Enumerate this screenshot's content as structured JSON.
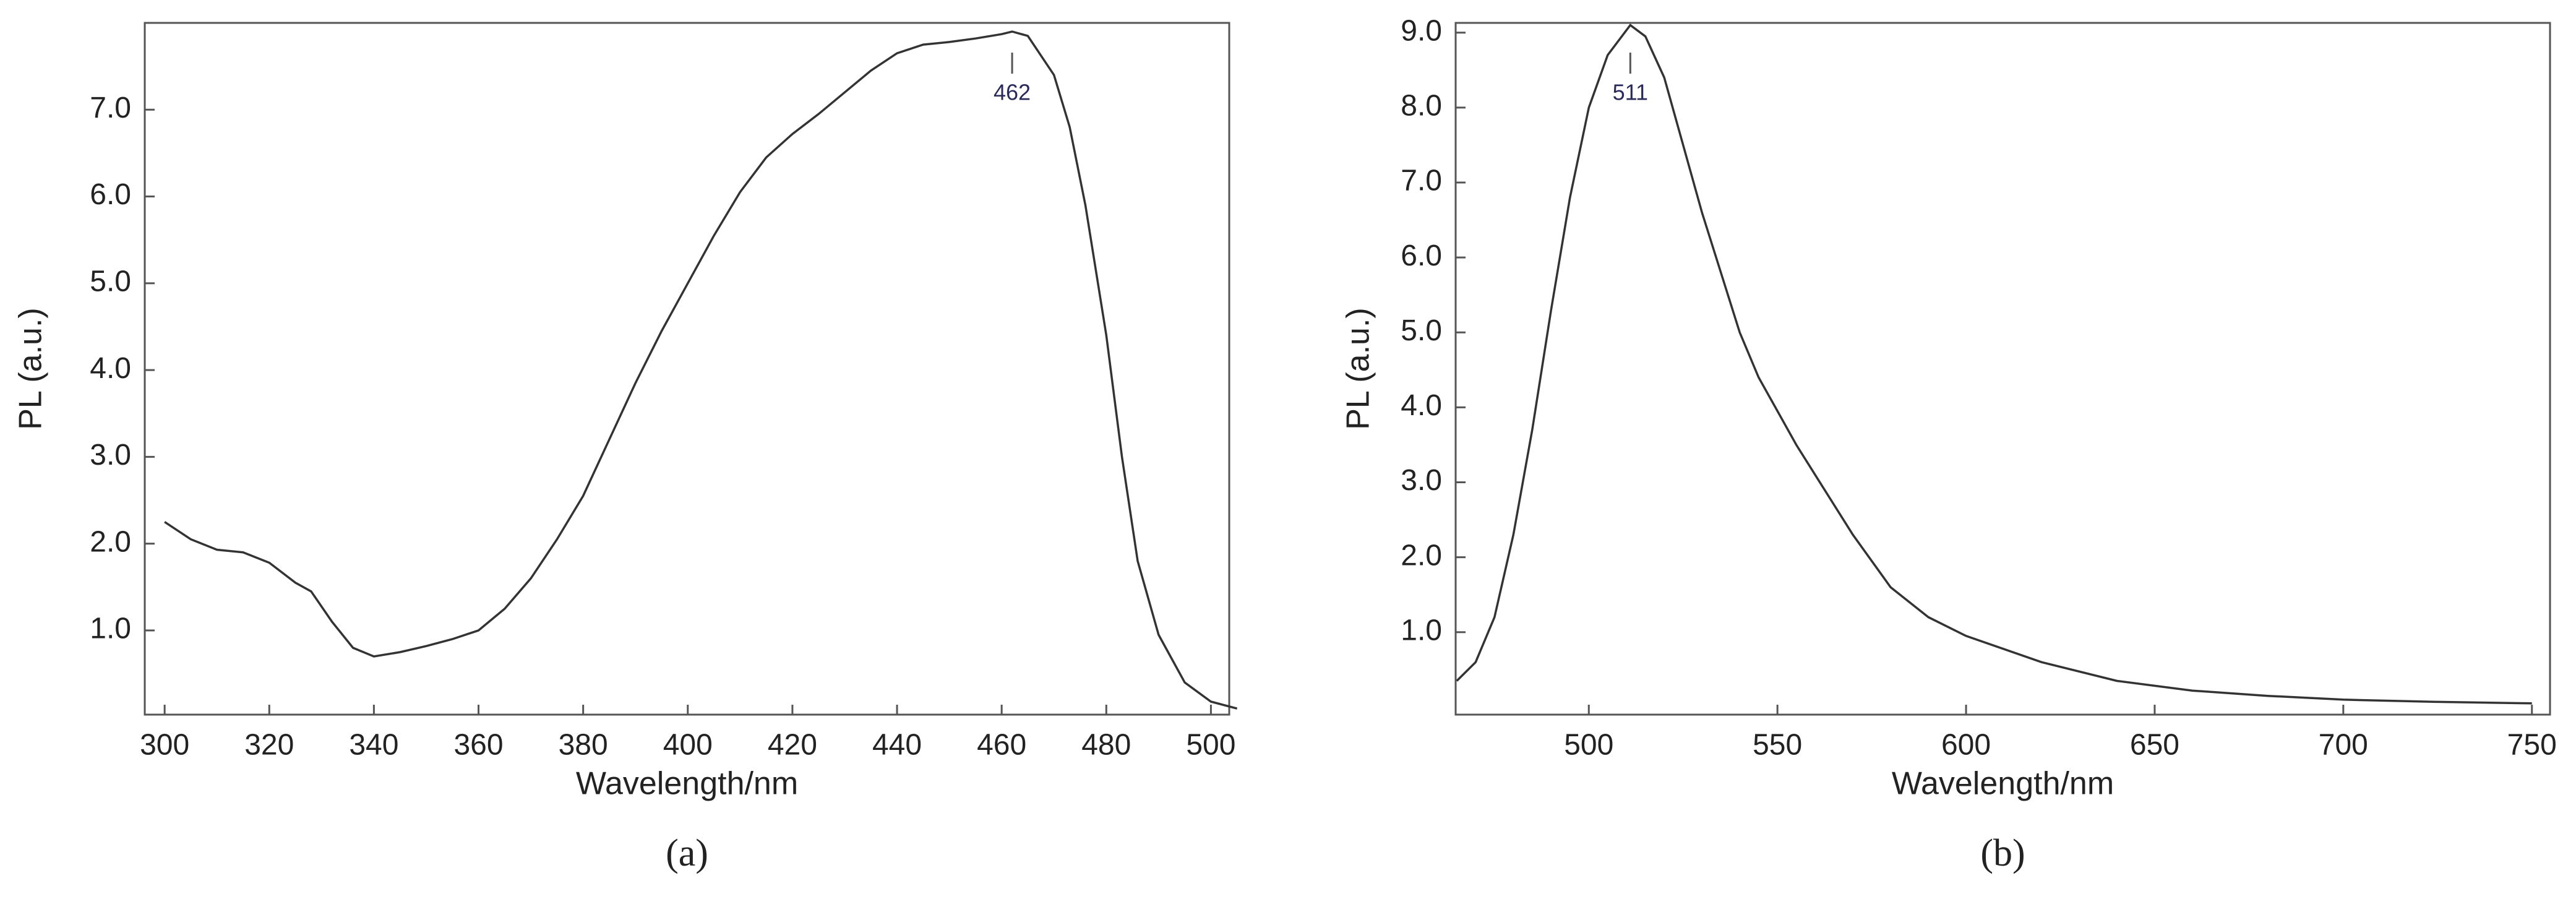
{
  "chart_data": [
    {
      "type": "line",
      "caption": "(a)",
      "xlabel": "Wavelength/nm",
      "ylabel": "PL (a.u.)",
      "x": [
        300,
        305,
        310,
        315,
        320,
        325,
        328,
        332,
        336,
        340,
        345,
        350,
        355,
        360,
        365,
        370,
        375,
        380,
        385,
        390,
        395,
        400,
        405,
        410,
        415,
        420,
        425,
        430,
        435,
        440,
        445,
        450,
        455,
        460,
        462,
        465,
        470,
        473,
        476,
        480,
        483,
        486,
        490,
        495,
        500,
        505
      ],
      "series": [
        {
          "color": "#333333",
          "values": [
            2.25,
            2.05,
            1.93,
            1.9,
            1.78,
            1.55,
            1.45,
            1.1,
            0.8,
            0.7,
            0.75,
            0.82,
            0.9,
            1.0,
            1.25,
            1.6,
            2.05,
            2.55,
            3.2,
            3.85,
            4.45,
            5.0,
            5.55,
            6.05,
            6.45,
            6.72,
            6.95,
            7.2,
            7.45,
            7.65,
            7.75,
            7.78,
            7.82,
            7.87,
            7.9,
            7.85,
            7.4,
            6.8,
            5.9,
            4.4,
            3.0,
            1.8,
            0.95,
            0.4,
            0.18,
            0.1
          ]
        }
      ],
      "annotations": [
        462
      ],
      "xlim": [
        296.2,
        503.5
      ],
      "xticks": [
        300,
        320,
        340,
        360,
        380,
        400,
        420,
        440,
        460,
        480,
        500
      ],
      "ylim": [
        0.03,
        8.0
      ],
      "yticks": [
        {
          "value": 1,
          "label": "1.0"
        },
        {
          "value": 2,
          "label": "2.0"
        },
        {
          "value": 3,
          "label": "3.0"
        },
        {
          "value": 4,
          "label": "4.0"
        },
        {
          "value": 5,
          "label": "5.0"
        },
        {
          "value": 6,
          "label": "6.0"
        },
        {
          "value": 7,
          "label": "7.0"
        }
      ]
    },
    {
      "type": "line",
      "caption": "(b)",
      "xlabel": "Wavelength/nm",
      "ylabel": "PL (a.u.)",
      "x": [
        465,
        470,
        475,
        480,
        485,
        490,
        495,
        500,
        505,
        511,
        515,
        520,
        525,
        530,
        535,
        540,
        545,
        550,
        555,
        560,
        570,
        580,
        590,
        600,
        620,
        640,
        660,
        680,
        700,
        725,
        750
      ],
      "series": [
        {
          "color": "#333333",
          "values": [
            0.35,
            0.6,
            1.2,
            2.3,
            3.7,
            5.3,
            6.8,
            8.0,
            8.7,
            9.1,
            8.95,
            8.4,
            7.5,
            6.6,
            5.8,
            5.0,
            4.4,
            3.95,
            3.5,
            3.1,
            2.3,
            1.6,
            1.2,
            0.95,
            0.6,
            0.35,
            0.22,
            0.15,
            0.1,
            0.07,
            0.05
          ]
        }
      ],
      "annotations": [
        511
      ],
      "xlim": [
        464.7,
        754.8
      ],
      "xticks": [
        500,
        550,
        600,
        650,
        700,
        750
      ],
      "ylim": [
        -0.1,
        9.13
      ],
      "yticks": [
        {
          "value": 1,
          "label": "1.0"
        },
        {
          "value": 2,
          "label": "2.0"
        },
        {
          "value": 3,
          "label": "3.0"
        },
        {
          "value": 4,
          "label": "4.0"
        },
        {
          "value": 5,
          "label": "5.0"
        },
        {
          "value": 6,
          "label": "6.0"
        },
        {
          "value": 7,
          "label": "7.0"
        },
        {
          "value": 8,
          "label": "8.0"
        },
        {
          "value": 9,
          "label": "9.0"
        }
      ]
    }
  ]
}
